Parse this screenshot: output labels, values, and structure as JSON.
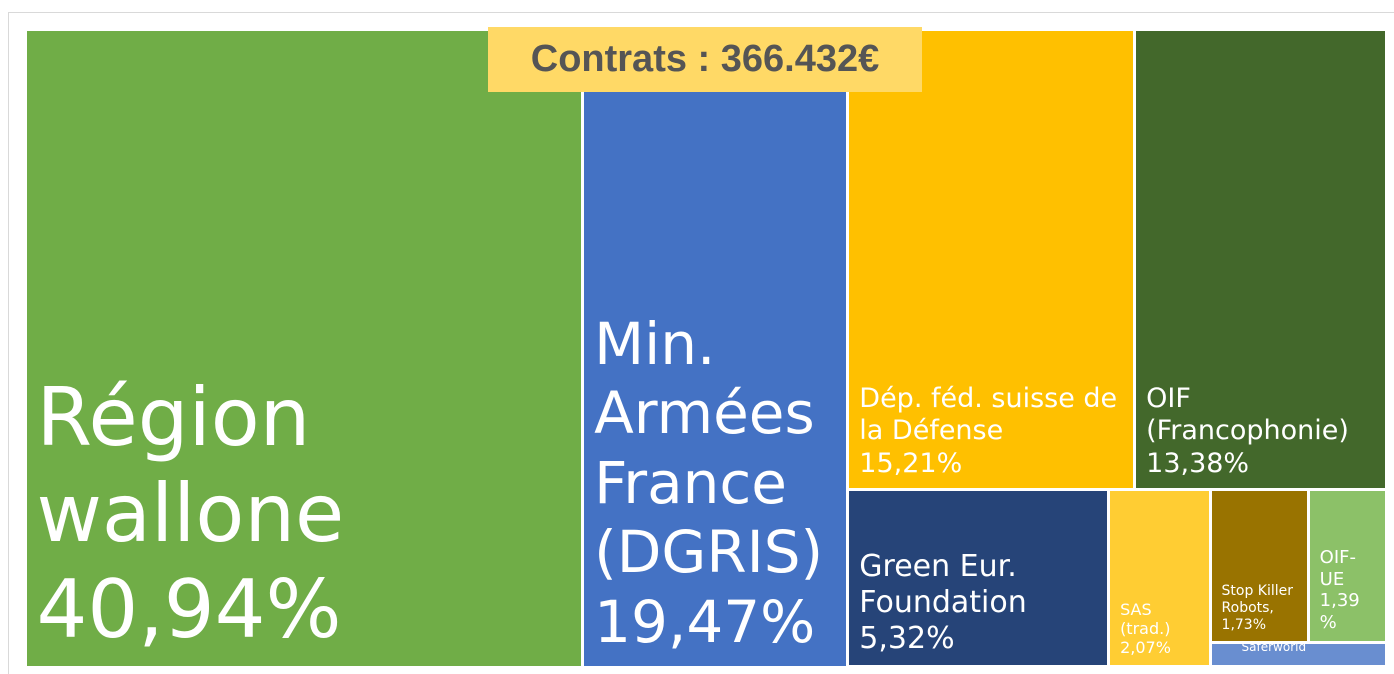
{
  "chart_data": {
    "type": "treemap",
    "title": "Contrats : 366.432€",
    "categories": [
      "Région wallone",
      "Min. Armées France (DGRIS)",
      "Dép. féd. suisse de la Défense",
      "OIF (Francophonie)",
      "Green Eur. Foundation",
      "SAS (trad.)",
      "Stop Killer Robots,",
      "OIF-UE",
      "Saferworld"
    ],
    "values": [
      40.94,
      19.47,
      15.21,
      13.38,
      5.32,
      2.07,
      1.73,
      1.39,
      0.49
    ],
    "value_labels": [
      "40,94%",
      "19,47%",
      "15,21%",
      "13,38%",
      "5,32%",
      "2,07%",
      "1,73%",
      "1,39 %",
      null
    ],
    "colors": [
      "#70ad47",
      "#4472c4",
      "#ffc000",
      "#43682b",
      "#264478",
      "#ffcd33",
      "#997300",
      "#8cc168",
      "#698ed0"
    ]
  }
}
